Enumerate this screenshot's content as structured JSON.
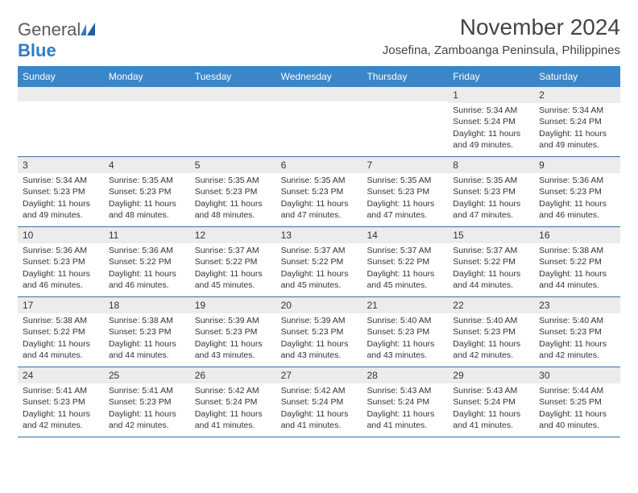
{
  "logo": {
    "word1": "General",
    "word2": "Blue"
  },
  "title": "November 2024",
  "location": "Josefina, Zamboanga Peninsula, Philippines",
  "colors": {
    "header_bg": "#3a86c8",
    "header_text": "#ffffff",
    "daynum_bg": "#ececec",
    "week_border": "#3a6ea5",
    "body_text": "#333333",
    "title_text": "#444444",
    "logo_gray": "#5a5a5a",
    "logo_blue": "#2f7cc4"
  },
  "day_names": [
    "Sunday",
    "Monday",
    "Tuesday",
    "Wednesday",
    "Thursday",
    "Friday",
    "Saturday"
  ],
  "weeks": [
    [
      {
        "n": "",
        "lines": []
      },
      {
        "n": "",
        "lines": []
      },
      {
        "n": "",
        "lines": []
      },
      {
        "n": "",
        "lines": []
      },
      {
        "n": "",
        "lines": []
      },
      {
        "n": "1",
        "lines": [
          "Sunrise: 5:34 AM",
          "Sunset: 5:24 PM",
          "Daylight: 11 hours and 49 minutes."
        ]
      },
      {
        "n": "2",
        "lines": [
          "Sunrise: 5:34 AM",
          "Sunset: 5:24 PM",
          "Daylight: 11 hours and 49 minutes."
        ]
      }
    ],
    [
      {
        "n": "3",
        "lines": [
          "Sunrise: 5:34 AM",
          "Sunset: 5:23 PM",
          "Daylight: 11 hours and 49 minutes."
        ]
      },
      {
        "n": "4",
        "lines": [
          "Sunrise: 5:35 AM",
          "Sunset: 5:23 PM",
          "Daylight: 11 hours and 48 minutes."
        ]
      },
      {
        "n": "5",
        "lines": [
          "Sunrise: 5:35 AM",
          "Sunset: 5:23 PM",
          "Daylight: 11 hours and 48 minutes."
        ]
      },
      {
        "n": "6",
        "lines": [
          "Sunrise: 5:35 AM",
          "Sunset: 5:23 PM",
          "Daylight: 11 hours and 47 minutes."
        ]
      },
      {
        "n": "7",
        "lines": [
          "Sunrise: 5:35 AM",
          "Sunset: 5:23 PM",
          "Daylight: 11 hours and 47 minutes."
        ]
      },
      {
        "n": "8",
        "lines": [
          "Sunrise: 5:35 AM",
          "Sunset: 5:23 PM",
          "Daylight: 11 hours and 47 minutes."
        ]
      },
      {
        "n": "9",
        "lines": [
          "Sunrise: 5:36 AM",
          "Sunset: 5:23 PM",
          "Daylight: 11 hours and 46 minutes."
        ]
      }
    ],
    [
      {
        "n": "10",
        "lines": [
          "Sunrise: 5:36 AM",
          "Sunset: 5:23 PM",
          "Daylight: 11 hours and 46 minutes."
        ]
      },
      {
        "n": "11",
        "lines": [
          "Sunrise: 5:36 AM",
          "Sunset: 5:22 PM",
          "Daylight: 11 hours and 46 minutes."
        ]
      },
      {
        "n": "12",
        "lines": [
          "Sunrise: 5:37 AM",
          "Sunset: 5:22 PM",
          "Daylight: 11 hours and 45 minutes."
        ]
      },
      {
        "n": "13",
        "lines": [
          "Sunrise: 5:37 AM",
          "Sunset: 5:22 PM",
          "Daylight: 11 hours and 45 minutes."
        ]
      },
      {
        "n": "14",
        "lines": [
          "Sunrise: 5:37 AM",
          "Sunset: 5:22 PM",
          "Daylight: 11 hours and 45 minutes."
        ]
      },
      {
        "n": "15",
        "lines": [
          "Sunrise: 5:37 AM",
          "Sunset: 5:22 PM",
          "Daylight: 11 hours and 44 minutes."
        ]
      },
      {
        "n": "16",
        "lines": [
          "Sunrise: 5:38 AM",
          "Sunset: 5:22 PM",
          "Daylight: 11 hours and 44 minutes."
        ]
      }
    ],
    [
      {
        "n": "17",
        "lines": [
          "Sunrise: 5:38 AM",
          "Sunset: 5:22 PM",
          "Daylight: 11 hours and 44 minutes."
        ]
      },
      {
        "n": "18",
        "lines": [
          "Sunrise: 5:38 AM",
          "Sunset: 5:23 PM",
          "Daylight: 11 hours and 44 minutes."
        ]
      },
      {
        "n": "19",
        "lines": [
          "Sunrise: 5:39 AM",
          "Sunset: 5:23 PM",
          "Daylight: 11 hours and 43 minutes."
        ]
      },
      {
        "n": "20",
        "lines": [
          "Sunrise: 5:39 AM",
          "Sunset: 5:23 PM",
          "Daylight: 11 hours and 43 minutes."
        ]
      },
      {
        "n": "21",
        "lines": [
          "Sunrise: 5:40 AM",
          "Sunset: 5:23 PM",
          "Daylight: 11 hours and 43 minutes."
        ]
      },
      {
        "n": "22",
        "lines": [
          "Sunrise: 5:40 AM",
          "Sunset: 5:23 PM",
          "Daylight: 11 hours and 42 minutes."
        ]
      },
      {
        "n": "23",
        "lines": [
          "Sunrise: 5:40 AM",
          "Sunset: 5:23 PM",
          "Daylight: 11 hours and 42 minutes."
        ]
      }
    ],
    [
      {
        "n": "24",
        "lines": [
          "Sunrise: 5:41 AM",
          "Sunset: 5:23 PM",
          "Daylight: 11 hours and 42 minutes."
        ]
      },
      {
        "n": "25",
        "lines": [
          "Sunrise: 5:41 AM",
          "Sunset: 5:23 PM",
          "Daylight: 11 hours and 42 minutes."
        ]
      },
      {
        "n": "26",
        "lines": [
          "Sunrise: 5:42 AM",
          "Sunset: 5:24 PM",
          "Daylight: 11 hours and 41 minutes."
        ]
      },
      {
        "n": "27",
        "lines": [
          "Sunrise: 5:42 AM",
          "Sunset: 5:24 PM",
          "Daylight: 11 hours and 41 minutes."
        ]
      },
      {
        "n": "28",
        "lines": [
          "Sunrise: 5:43 AM",
          "Sunset: 5:24 PM",
          "Daylight: 11 hours and 41 minutes."
        ]
      },
      {
        "n": "29",
        "lines": [
          "Sunrise: 5:43 AM",
          "Sunset: 5:24 PM",
          "Daylight: 11 hours and 41 minutes."
        ]
      },
      {
        "n": "30",
        "lines": [
          "Sunrise: 5:44 AM",
          "Sunset: 5:25 PM",
          "Daylight: 11 hours and 40 minutes."
        ]
      }
    ]
  ]
}
